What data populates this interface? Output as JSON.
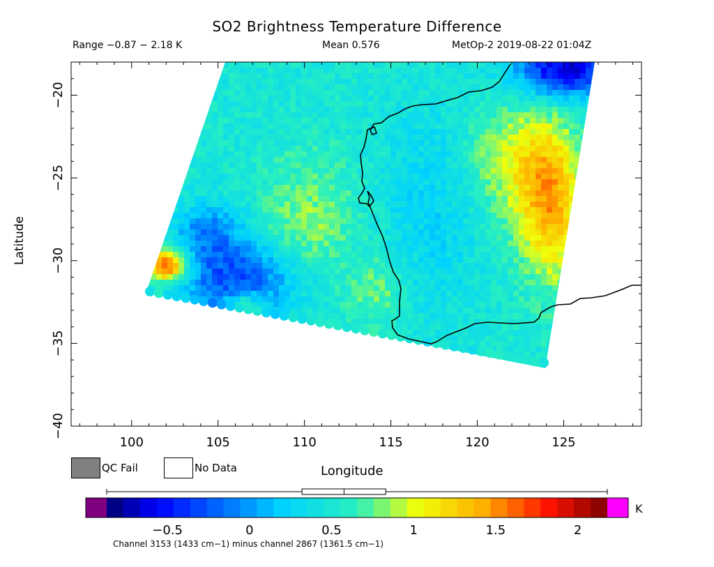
{
  "header": {
    "title": "SO2 Brightness Temperature Difference",
    "range": "Range −0.87 − 2.18 K",
    "mean": "Mean 0.576",
    "satellite": "MetOp-2 2019-08-22 01:04Z"
  },
  "axes": {
    "xlabel": "Longitude",
    "ylabel": "Latitude",
    "xticks": [
      "100",
      "105",
      "110",
      "115",
      "120",
      "125"
    ],
    "yticks": [
      "−20",
      "−25",
      "−30",
      "−35",
      "−40"
    ],
    "xlim": [
      96.5,
      129.5
    ],
    "ylim": [
      -40,
      -18
    ]
  },
  "legend": {
    "qc_fail": "QC Fail",
    "no_data": "No Data",
    "qc_fail_color": "#808080",
    "no_data_color": "#ffffff"
  },
  "colorbar": {
    "unit": "K",
    "ticks": [
      "−0.5",
      "0",
      "0.5",
      "1",
      "1.5",
      "2"
    ],
    "tick_values": [
      -0.5,
      0,
      0.5,
      1,
      1.5,
      2
    ],
    "range": [
      -0.87,
      2.18
    ],
    "underflow_color": "#800080",
    "overflow_color": "#ff00ff",
    "boxplot": {
      "min": -0.87,
      "q1": 0.32,
      "median": 0.576,
      "q3": 0.83,
      "max": 2.18
    }
  },
  "footnote": "Channel 3153 (1433 cm−1) minus channel 2867 (1361.5 cm−1)"
}
